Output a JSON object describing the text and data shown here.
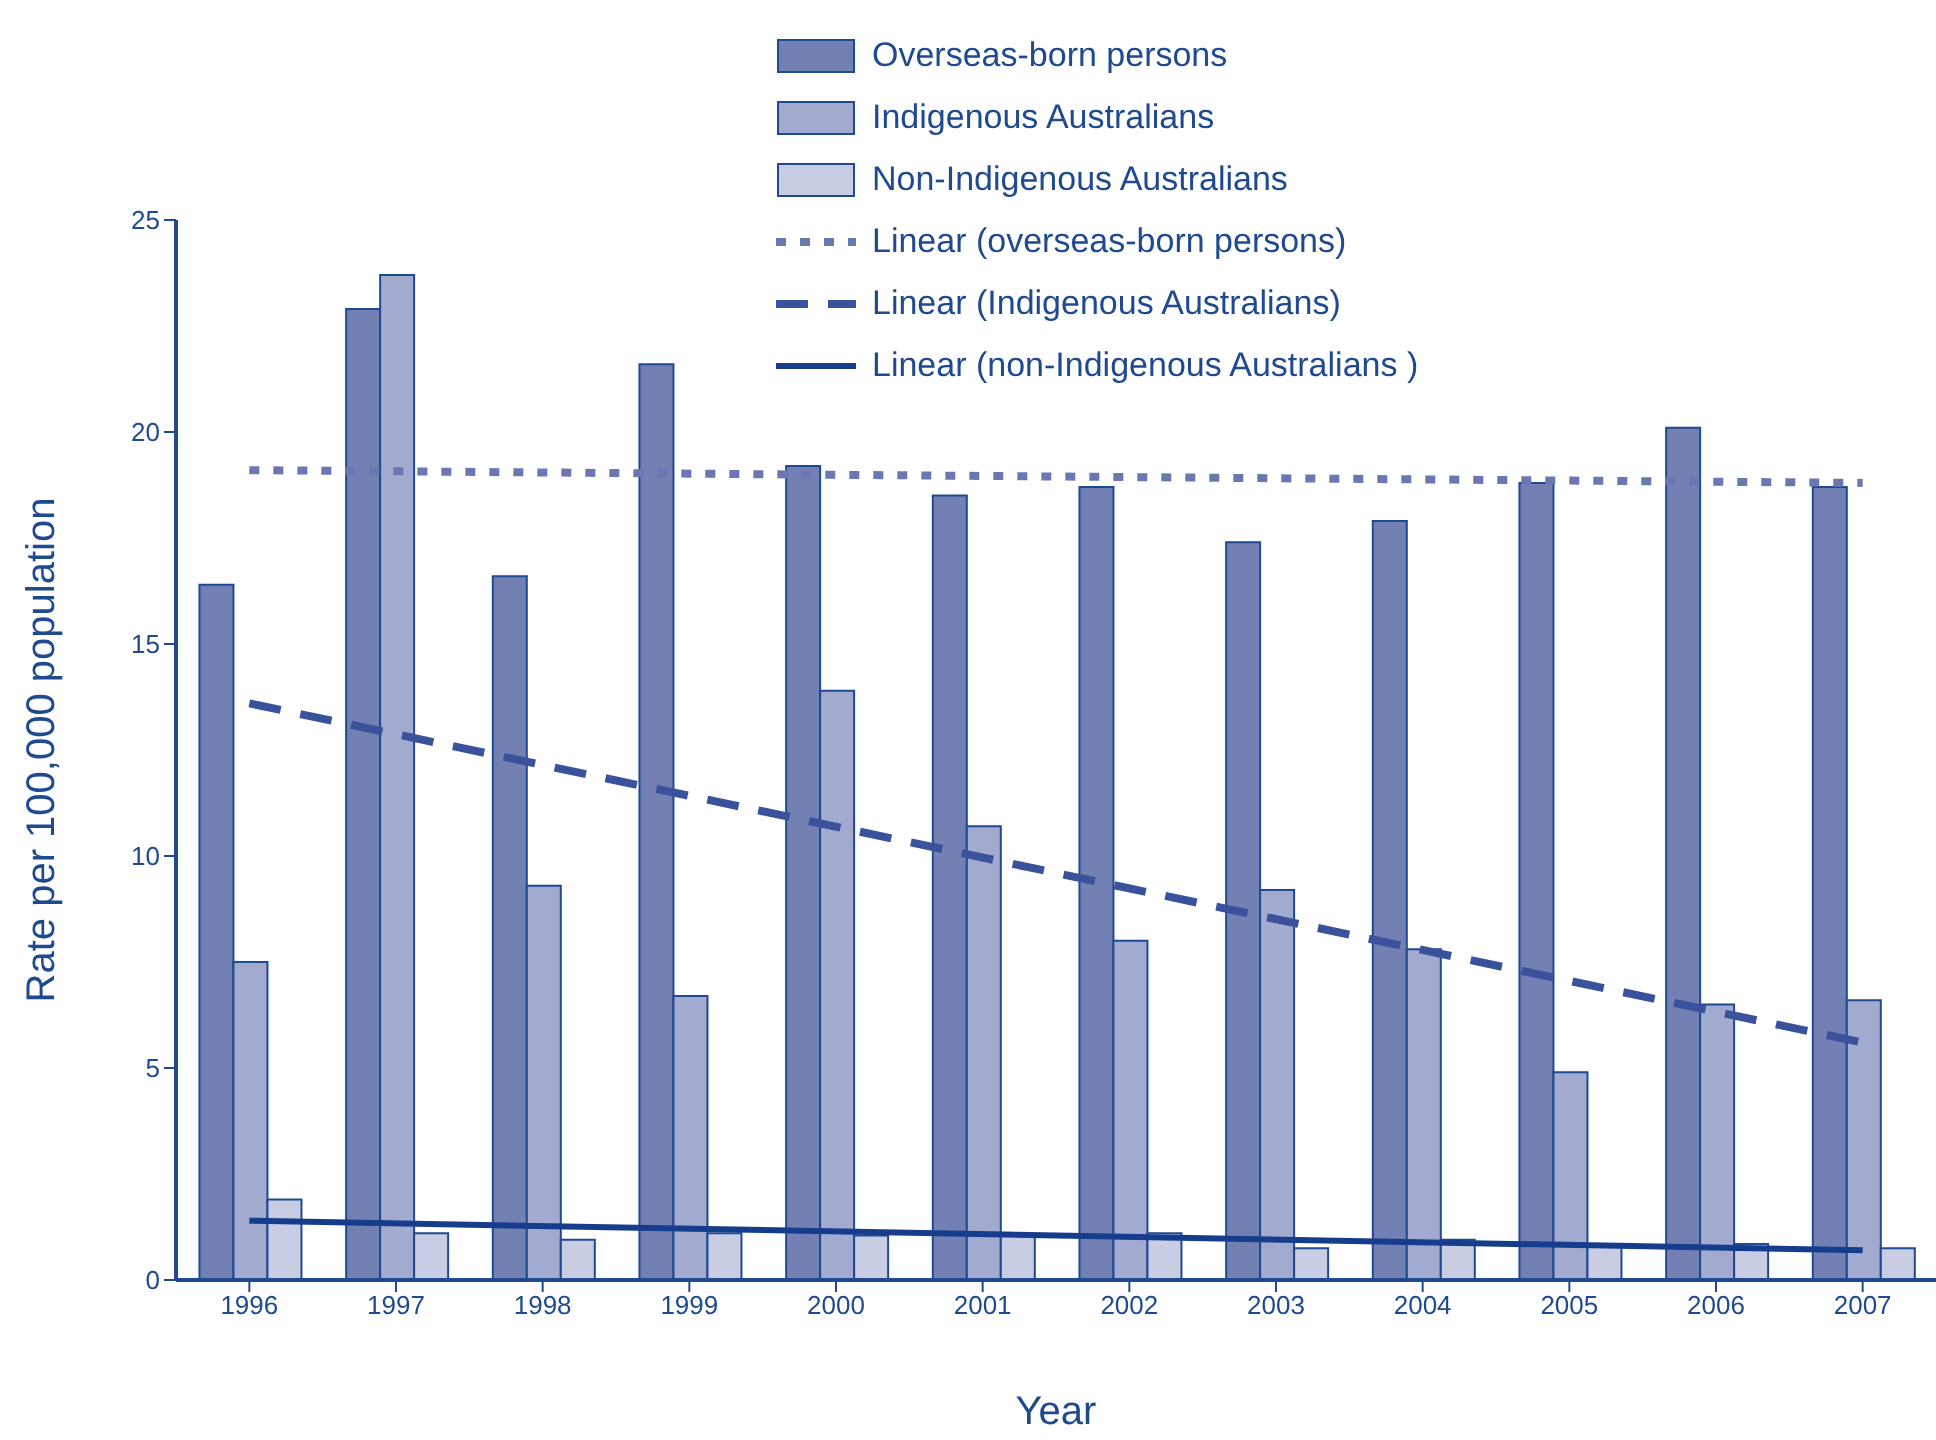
{
  "chart_data": {
    "type": "bar",
    "xlabel": "Year",
    "ylabel": "Rate per 100,000 population",
    "categories": [
      "1996",
      "1997",
      "1998",
      "1999",
      "2000",
      "2001",
      "2002",
      "2003",
      "2004",
      "2005",
      "2006",
      "2007"
    ],
    "series": [
      {
        "name": "Overseas-born persons",
        "color": "#7380b3",
        "values": [
          16.4,
          22.9,
          16.6,
          21.6,
          19.2,
          18.5,
          18.7,
          17.4,
          17.9,
          18.8,
          20.1,
          18.7
        ]
      },
      {
        "name": "Indigenous Australians",
        "color": "#a3aad0",
        "values": [
          7.5,
          23.7,
          9.3,
          6.7,
          13.9,
          10.7,
          8.0,
          9.2,
          7.8,
          4.9,
          6.5,
          6.6
        ]
      },
      {
        "name": "Non-Indigenous Australians",
        "color": "#c9cde4",
        "values": [
          1.9,
          1.1,
          0.95,
          1.1,
          1.05,
          1.05,
          1.1,
          0.75,
          0.95,
          0.85,
          0.85,
          0.75
        ]
      },
      {
        "name": "Linear (overseas-born persons)",
        "type": "line",
        "line_style": "dotted",
        "color": "#6b77b3",
        "values": [
          19.1,
          null,
          null,
          null,
          null,
          null,
          null,
          null,
          null,
          null,
          null,
          18.8
        ]
      },
      {
        "name": "Linear (Indigenous Australians)",
        "type": "line",
        "line_style": "dashed",
        "color": "#3a519b",
        "values": [
          13.6,
          null,
          null,
          null,
          null,
          null,
          null,
          null,
          null,
          null,
          null,
          5.6
        ]
      },
      {
        "name": "Linear (non-Indigenous Australians )",
        "type": "line",
        "line_style": "solid",
        "color": "#153d8c",
        "values": [
          1.4,
          null,
          null,
          null,
          null,
          null,
          null,
          null,
          null,
          null,
          null,
          0.7
        ]
      }
    ],
    "ylim": [
      0,
      25
    ],
    "yticks": [
      0,
      5,
      10,
      15,
      20,
      25
    ],
    "grid": false,
    "legend": "top right"
  }
}
